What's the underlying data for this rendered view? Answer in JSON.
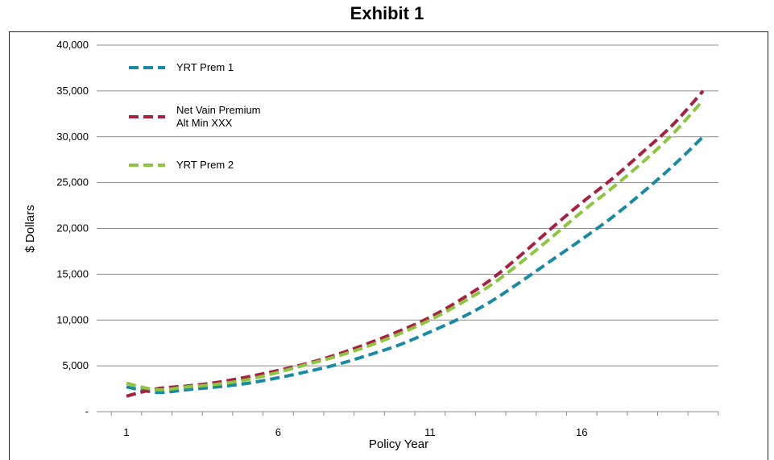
{
  "chart_data": {
    "type": "line",
    "title": "Exhibit 1",
    "xlabel": "Policy Year",
    "ylabel": "$ Dollars",
    "x": [
      1,
      2,
      3,
      4,
      5,
      6,
      7,
      8,
      9,
      10,
      11,
      12,
      13,
      14,
      15,
      16,
      17,
      18,
      19,
      20
    ],
    "xticks": [
      1,
      6,
      11,
      16
    ],
    "xlim": [
      1,
      20
    ],
    "ylim": [
      0,
      40000
    ],
    "yticks": [
      0,
      5000,
      10000,
      15000,
      20000,
      25000,
      30000,
      35000,
      40000
    ],
    "ytick_labels": [
      "-",
      "5,000",
      "10,000",
      "15,000",
      "20,000",
      "25,000",
      "30,000",
      "35,000",
      "40,000"
    ],
    "grid": "horizontal",
    "legend_position": "top-left",
    "series": [
      {
        "name": "YRT Prem 1",
        "color": "#1a8aa3",
        "values": [
          2700,
          2100,
          2400,
          2700,
          3100,
          3700,
          4400,
          5200,
          6200,
          7300,
          8700,
          10200,
          12000,
          14200,
          16500,
          18800,
          21200,
          23900,
          26800,
          30000
        ]
      },
      {
        "name": "Net Vain Premium Alt Min XXX",
        "color": "#a8203f",
        "values": [
          1700,
          2500,
          2800,
          3200,
          3800,
          4500,
          5300,
          6300,
          7500,
          8800,
          10300,
          12200,
          14400,
          17100,
          20000,
          22800,
          25400,
          28300,
          31300,
          35000
        ]
      },
      {
        "name": "YRT Prem 2",
        "color": "#8cc63f",
        "values": [
          3100,
          2400,
          2700,
          3000,
          3500,
          4300,
          5200,
          6100,
          7200,
          8500,
          10000,
          11800,
          13800,
          16300,
          19000,
          21800,
          24400,
          27200,
          30300,
          34000
        ]
      }
    ],
    "legend_lines": [
      [
        "YRT Prem 1"
      ],
      [
        "Net Vain Premium",
        "Alt Min XXX"
      ],
      [
        "YRT Prem 2"
      ]
    ]
  }
}
